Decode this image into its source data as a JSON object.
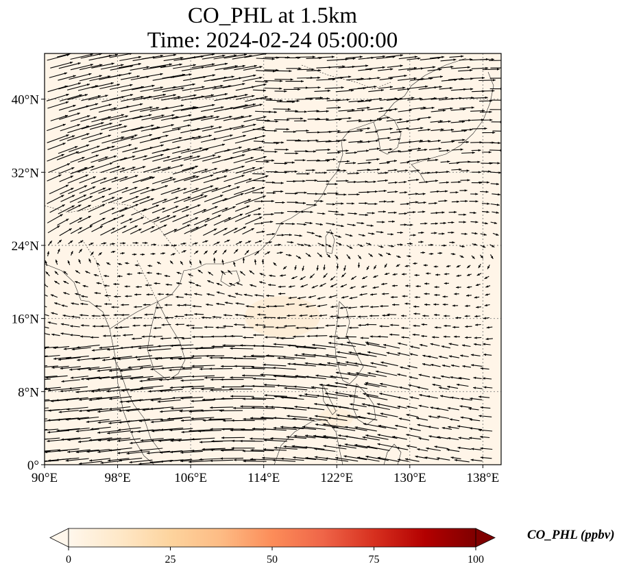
{
  "map": {
    "title_line1": "CO_PHL at 1.5km",
    "title_line2": "Time: 2024-02-24 05:00:00",
    "extent": {
      "lon_min": 90,
      "lon_max": 140,
      "lat_min": 0,
      "lat_max": 45
    },
    "lon_ticks": [
      {
        "value": 90,
        "label": "90°E"
      },
      {
        "value": 98,
        "label": "98°E"
      },
      {
        "value": 106,
        "label": "106°E"
      },
      {
        "value": 114,
        "label": "114°E"
      },
      {
        "value": 122,
        "label": "122°E"
      },
      {
        "value": 130,
        "label": "130°E"
      },
      {
        "value": 138,
        "label": "138°E"
      }
    ],
    "lat_ticks": [
      {
        "value": 0,
        "label": "0°"
      },
      {
        "value": 8,
        "label": "8°N"
      },
      {
        "value": 16,
        "label": "16°N"
      },
      {
        "value": 24,
        "label": "24°N"
      },
      {
        "value": 32,
        "label": "32°N"
      },
      {
        "value": 40,
        "label": "40°N"
      }
    ],
    "background_color": "#fff5e8",
    "gridlines": true,
    "wind_vectors": true,
    "coastlines": true
  },
  "colorbar": {
    "label": "CO_PHL (ppbv)",
    "min": 0,
    "max": 100,
    "extend": "both",
    "colormap": "OrRd",
    "colors": [
      "#fff7ec",
      "#fee8c8",
      "#fdd49e",
      "#fdbb84",
      "#fc8d59",
      "#ef6548",
      "#d7301f",
      "#b30000",
      "#7f0000"
    ],
    "ticks": [
      {
        "value": 0,
        "label": "0"
      },
      {
        "value": 25,
        "label": "25"
      },
      {
        "value": 50,
        "label": "50"
      },
      {
        "value": 75,
        "label": "75"
      },
      {
        "value": 100,
        "label": "100"
      }
    ]
  }
}
